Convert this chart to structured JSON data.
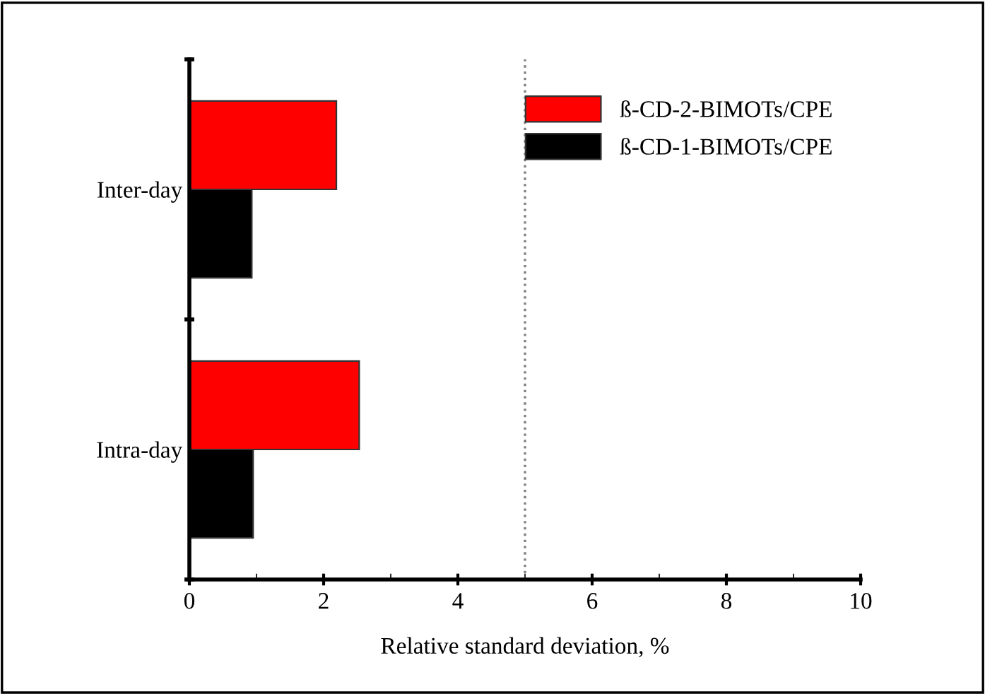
{
  "chart_data": {
    "type": "bar",
    "orientation": "horizontal",
    "categories": [
      "Inter-day",
      "Intra-day"
    ],
    "series": [
      {
        "name": "ß-CD-2-BIMOTs/CPE",
        "color": "#ff0000",
        "values": [
          2.19,
          2.53
        ]
      },
      {
        "name": "ß-CD-1-BIMOTs/CPE",
        "color": "#000000",
        "values": [
          0.93,
          0.95
        ]
      }
    ],
    "xlabel": "Relative standard deviation, %",
    "xlim": [
      0,
      10
    ],
    "xticks": [
      0,
      2,
      4,
      6,
      8,
      10
    ],
    "ref_lines": [
      {
        "axis": "x",
        "value": 5,
        "color": "#808080",
        "line_style": "dotted"
      }
    ],
    "legend": "top right",
    "grid": false
  }
}
